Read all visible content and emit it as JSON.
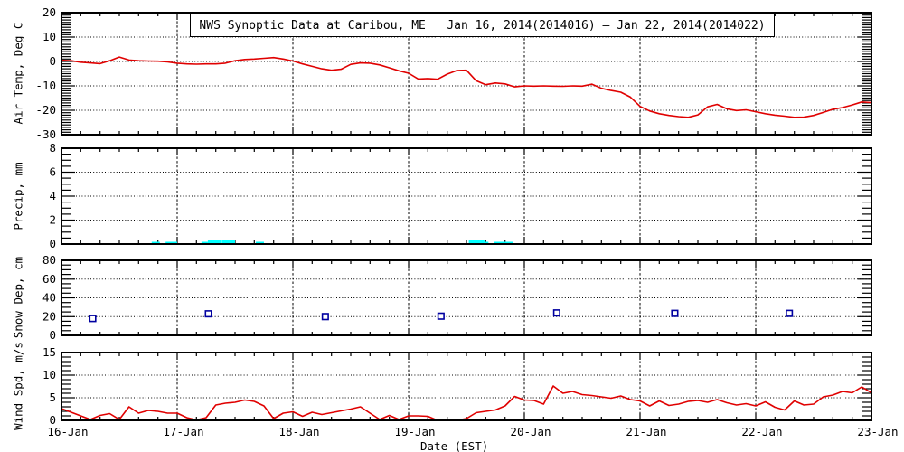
{
  "chart_data": {
    "type": "line",
    "title": "NWS Synoptic Data at Caribou, ME   Jan 16, 2014(2014016) – Jan 22, 2014(2014022)",
    "xlabel": "Date (EST)",
    "x_axis": {
      "domain_days": [
        16,
        23
      ],
      "tick_labels": [
        "16-Jan",
        "17-Jan",
        "18-Jan",
        "19-Jan",
        "20-Jan",
        "21-Jan",
        "22-Jan",
        "23-Jan"
      ],
      "minor_ticks_per_day": 6,
      "gridline_days": [
        17,
        18,
        19,
        20,
        21,
        22
      ]
    },
    "colors": {
      "series_red": "#e00000",
      "precip_cyan": "#00ffff",
      "snow_blue": "#0000a0",
      "axes": "#000000"
    },
    "panels": [
      {
        "name": "air-temp",
        "type": "line",
        "ylabel": "Air Temp, Deg C",
        "ylim": [
          -30,
          20
        ],
        "yticks": [
          -30,
          -20,
          -10,
          0,
          10,
          20
        ],
        "grid_yticks": [
          -20,
          -10,
          0,
          10
        ],
        "y_minor_step": 1,
        "color": "#e00000",
        "t_start": 16.0,
        "t_step": 0.0833333,
        "values": [
          0.5,
          0.3,
          -0.3,
          -0.6,
          -0.9,
          0.3,
          1.8,
          0.6,
          0.3,
          0.2,
          0.1,
          -0.2,
          -0.7,
          -1.0,
          -1.1,
          -1.0,
          -1.0,
          -0.7,
          0.3,
          0.8,
          1.0,
          1.3,
          1.6,
          1.0,
          0.2,
          -1.0,
          -2.0,
          -3.0,
          -3.6,
          -3.2,
          -1.2,
          -0.6,
          -0.7,
          -1.4,
          -2.6,
          -3.8,
          -4.8,
          -7.2,
          -7.0,
          -7.3,
          -5.2,
          -3.7,
          -3.6,
          -7.9,
          -9.5,
          -8.8,
          -9.2,
          -10.4,
          -10.0,
          -10.1,
          -10.0,
          -10.1,
          -10.2,
          -10.0,
          -10.1,
          -9.3,
          -11.0,
          -11.9,
          -12.6,
          -14.6,
          -18.4,
          -20.3,
          -21.4,
          -22.1,
          -22.6,
          -22.9,
          -21.9,
          -18.6,
          -17.6,
          -19.4,
          -20.1,
          -19.8,
          -20.6,
          -21.4,
          -22.0,
          -22.4,
          -22.9,
          -22.8,
          -22.1,
          -20.9,
          -19.6,
          -18.9,
          -17.8,
          -16.6,
          -16.9
        ]
      },
      {
        "name": "precip",
        "type": "bar",
        "ylabel": "Precip, mm",
        "ylim": [
          0,
          8
        ],
        "yticks": [
          0,
          2,
          4,
          6,
          8
        ],
        "grid_yticks": [
          2,
          4,
          6
        ],
        "y_minor_step": 0.5,
        "color": "#00ffff",
        "bars": [
          {
            "t": 16.78,
            "w": 0.07,
            "mm": 0.15
          },
          {
            "t": 16.9,
            "w": 0.1,
            "mm": 0.15
          },
          {
            "t": 17.21,
            "w": 0.055,
            "mm": 0.15
          },
          {
            "t": 17.265,
            "w": 0.115,
            "mm": 0.32
          },
          {
            "t": 17.385,
            "w": 0.115,
            "mm": 0.37
          },
          {
            "t": 17.68,
            "w": 0.07,
            "mm": 0.15
          },
          {
            "t": 19.52,
            "w": 0.135,
            "mm": 0.3
          },
          {
            "t": 19.655,
            "w": 0.035,
            "mm": 0.15
          },
          {
            "t": 19.74,
            "w": 0.165,
            "mm": 0.15
          }
        ]
      },
      {
        "name": "snow-depth",
        "type": "scatter",
        "ylabel": "Snow Dep, cm",
        "ylim": [
          0,
          80
        ],
        "yticks": [
          0,
          20,
          40,
          60,
          80
        ],
        "grid_yticks": [
          20,
          40,
          60
        ],
        "y_minor_step": 5,
        "color": "#0000a0",
        "x": [
          16.27,
          17.27,
          18.28,
          19.28,
          20.28,
          21.3,
          22.29
        ],
        "y": [
          18,
          23,
          20,
          20.5,
          24,
          23.5,
          23.5
        ]
      },
      {
        "name": "wind-speed",
        "type": "line",
        "ylabel": "Wind Spd, m/s",
        "ylim": [
          0,
          15
        ],
        "yticks": [
          0,
          5,
          10,
          15
        ],
        "grid_yticks": [
          5,
          10
        ],
        "y_minor_step": 1,
        "color": "#e00000",
        "t_start": 16.0,
        "t_step": 0.0833333,
        "values": [
          2.6,
          1.8,
          1.0,
          0.2,
          1.1,
          1.5,
          0.2,
          3.0,
          1.6,
          2.2,
          2.0,
          1.6,
          1.6,
          0.6,
          0.1,
          0.6,
          3.4,
          3.8,
          4.0,
          4.5,
          4.2,
          3.2,
          0.4,
          1.6,
          1.9,
          0.9,
          1.8,
          1.3,
          1.7,
          2.1,
          2.5,
          3.0,
          1.6,
          0.2,
          1.1,
          0.2,
          1.0,
          1.0,
          0.9,
          0.0,
          0.0,
          0.0,
          0.4,
          1.7,
          2.0,
          2.3,
          3.2,
          5.3,
          4.5,
          4.4,
          3.6,
          7.6,
          6.0,
          6.4,
          5.7,
          5.5,
          5.2,
          4.9,
          5.4,
          4.6,
          4.3,
          3.2,
          4.3,
          3.3,
          3.6,
          4.2,
          4.4,
          4.0,
          4.6,
          3.9,
          3.4,
          3.7,
          3.2,
          4.1,
          2.9,
          2.3,
          4.3,
          3.4,
          3.6,
          5.2,
          5.6,
          6.4,
          6.1,
          7.4,
          6.1
        ]
      }
    ]
  }
}
